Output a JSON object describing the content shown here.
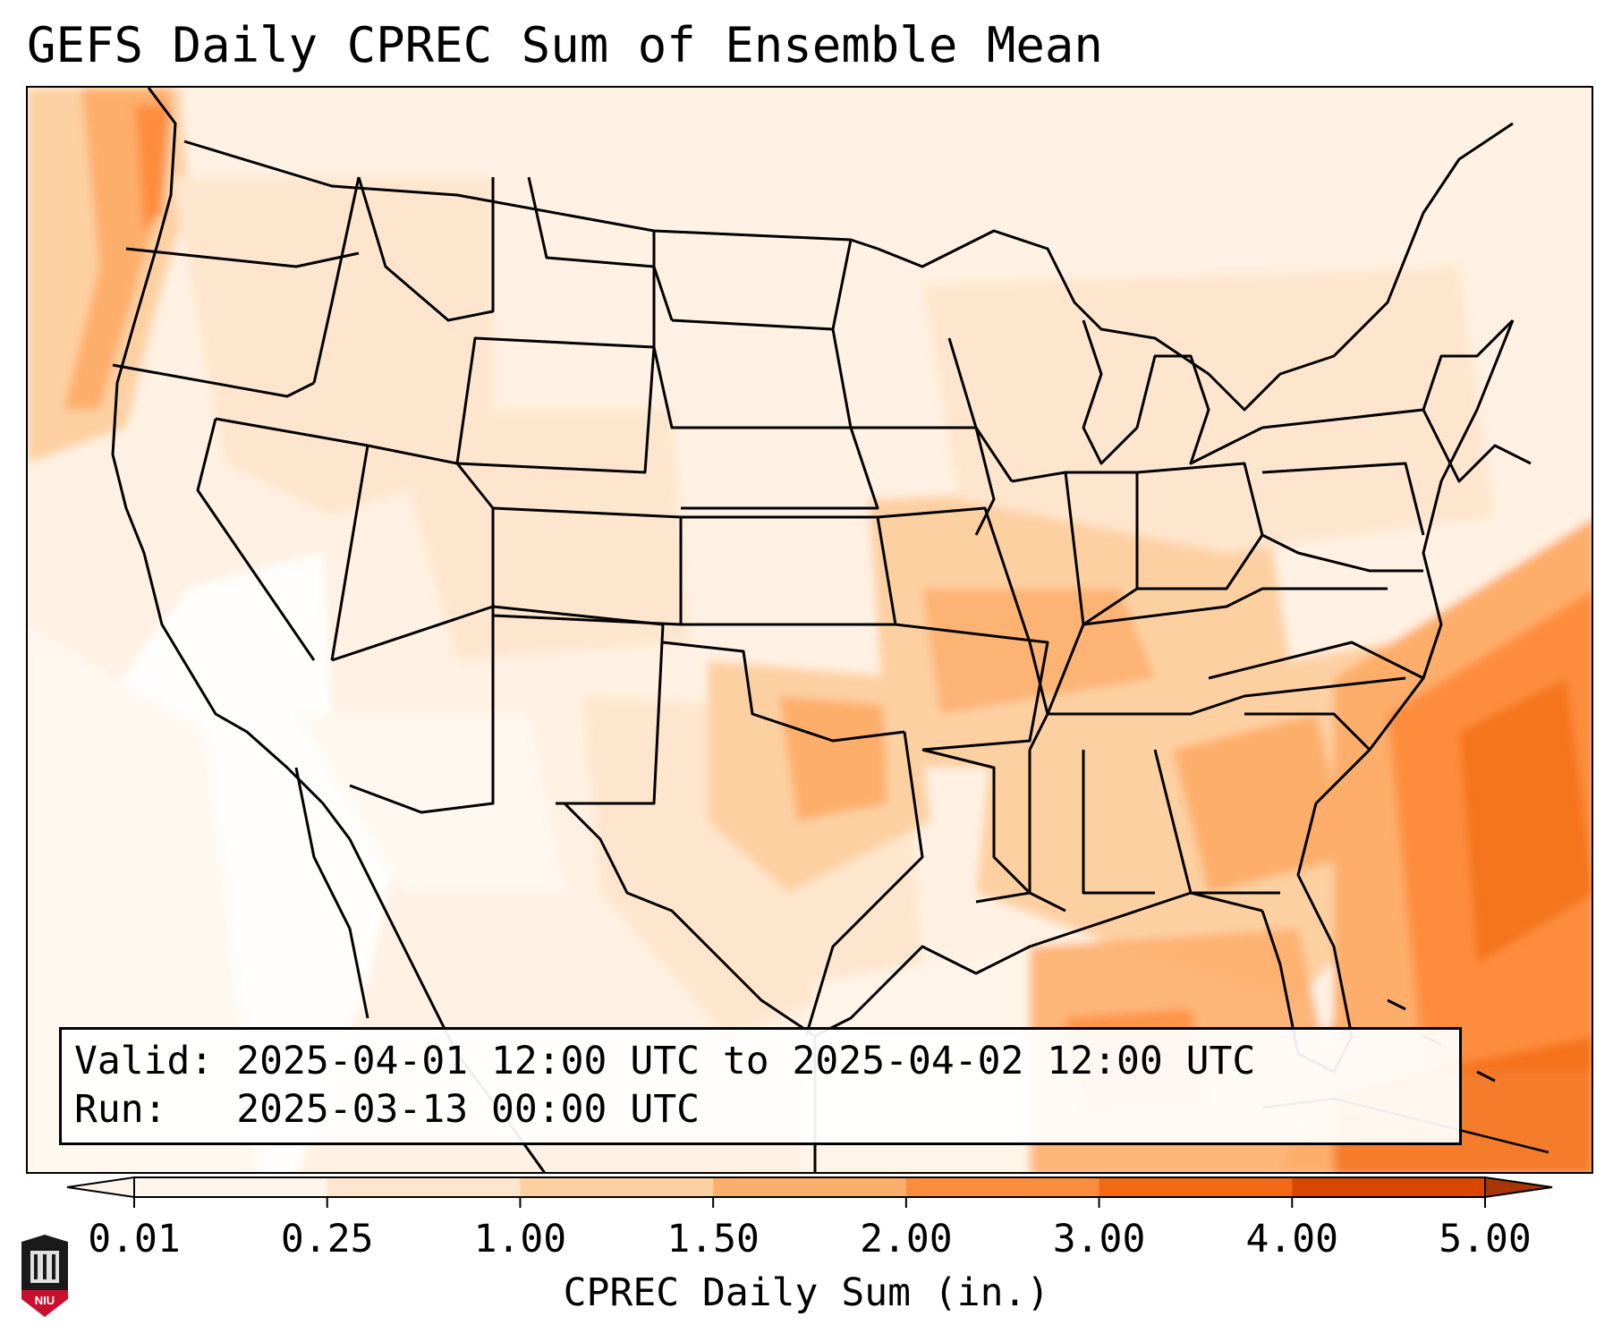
{
  "title": "GEFS Daily CPREC Sum of Ensemble Mean",
  "info": {
    "valid_line": "Valid: 2025-04-01 12:00 UTC to 2025-04-02 12:00 UTC",
    "run_line": "Run:   2025-03-13 00:00 UTC"
  },
  "colorbar": {
    "label": "CPREC Daily Sum (in.)",
    "ticks": [
      "0.01",
      "0.25",
      "1.00",
      "1.50",
      "2.00",
      "3.00",
      "4.00",
      "5.00"
    ],
    "colors": [
      "#fff5eb",
      "#fee6ce",
      "#fdd0a2",
      "#fdae6b",
      "#fd8d3c",
      "#f16913",
      "#d94801",
      "#a63603"
    ],
    "extend": "both"
  },
  "map": {
    "projection": "lambert-conformal",
    "region": "CONUS",
    "precip_regions": [
      {
        "name": "pacific-northwest-coast",
        "level": "2.00",
        "color": "#fd8d3c"
      },
      {
        "name": "southern-plains-oklahoma",
        "level": "1.50",
        "color": "#fdae6b"
      },
      {
        "name": "ohio-valley",
        "level": "1.50",
        "color": "#fdae6b"
      },
      {
        "name": "southeast",
        "level": "1.50",
        "color": "#fdae6b"
      },
      {
        "name": "atlantic-offshore",
        "level": "3.00",
        "color": "#f16913"
      },
      {
        "name": "gulf-of-mexico-east",
        "level": "1.50",
        "color": "#fdae6b"
      }
    ]
  },
  "logo": {
    "text": "NIU"
  }
}
